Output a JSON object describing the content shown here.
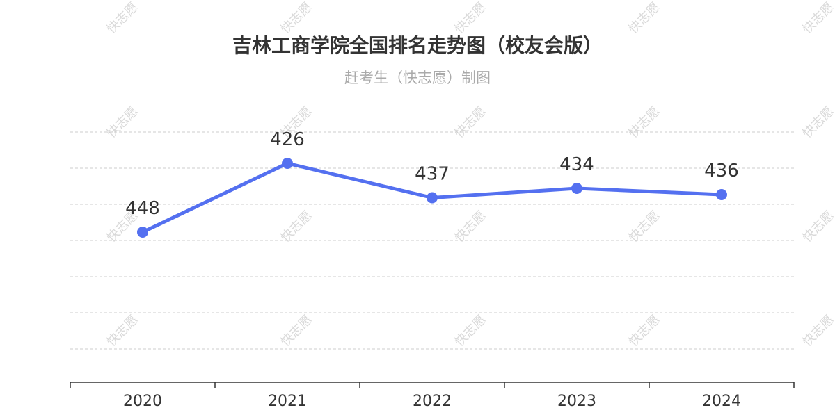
{
  "chart_data": {
    "type": "line",
    "title": "吉林工商学院全国排名走势图（校友会版）",
    "subtitle": "赶考生（快志愿）制图",
    "categories": [
      "2020",
      "2021",
      "2022",
      "2023",
      "2024"
    ],
    "series": [
      {
        "values": [
          448,
          426,
          437,
          434,
          436
        ]
      }
    ],
    "y_inverted": true,
    "ylim": [
      416,
      496
    ],
    "grid": true,
    "y_axis_labels_shown": false,
    "data_labels_shown": true,
    "legend": "none"
  },
  "watermark": {
    "text": "快志愿"
  },
  "colors": {
    "line": "#5470f0",
    "grid": "#cccccc",
    "axis": "#333333",
    "title": "#333333",
    "subtitle": "#aaaaaa",
    "watermark": "#d9d9d9"
  }
}
